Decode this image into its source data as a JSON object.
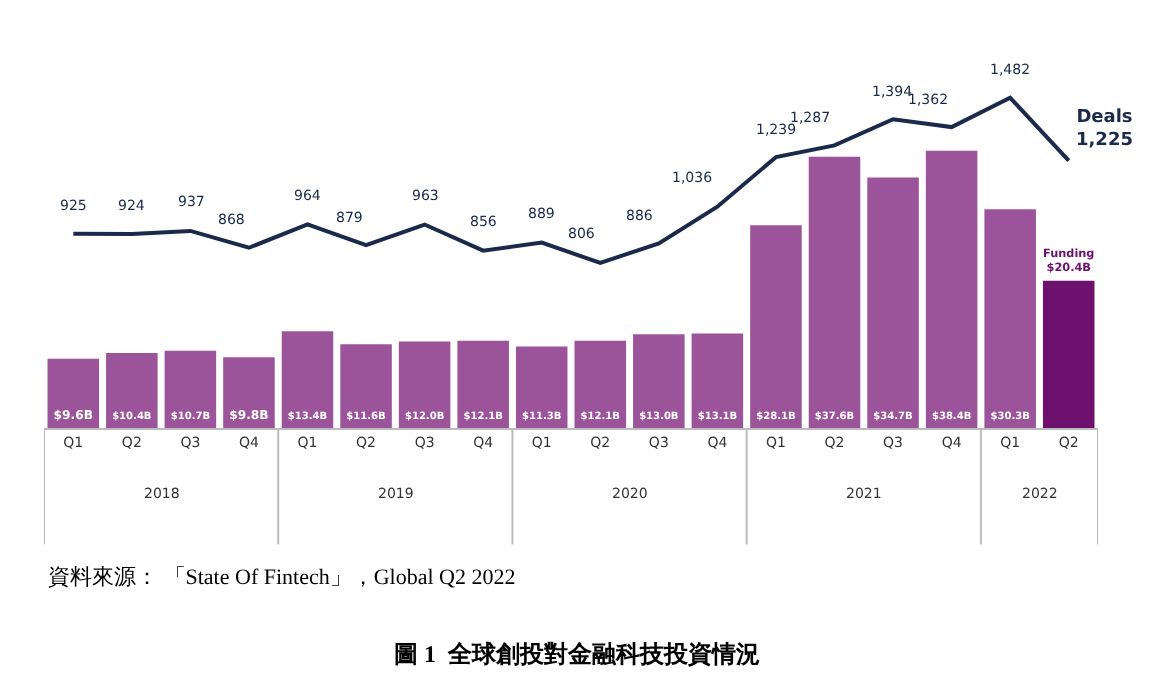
{
  "chart_data": {
    "type": "bar",
    "title": "圖 1  全球創投對金融科技投資情況",
    "categories": [
      "Q1",
      "Q2",
      "Q3",
      "Q4",
      "Q1",
      "Q2",
      "Q3",
      "Q4",
      "Q1",
      "Q2",
      "Q3",
      "Q4",
      "Q1",
      "Q2",
      "Q3",
      "Q4",
      "Q1",
      "Q2"
    ],
    "series": [
      {
        "name": "Funding",
        "colors": [
          "#9b5499",
          "#9b5499",
          "#9b5499",
          "#9b5499",
          "#9b5499",
          "#9b5499",
          "#9b5499",
          "#9b5499",
          "#9b5499",
          "#9b5499",
          "#9b5499",
          "#9b5499",
          "#9b5499",
          "#9b5499",
          "#9b5499",
          "#9b5499",
          "#9b5499",
          "#6e106e"
        ],
        "values": [
          9.6,
          10.4,
          10.7,
          9.8,
          13.4,
          11.6,
          12.0,
          12.1,
          11.3,
          12.1,
          13.0,
          13.1,
          28.1,
          37.6,
          34.7,
          38.4,
          30.3,
          20.4
        ],
        "value_labels": [
          "$9.6B",
          "$10.4B",
          "$10.7B",
          "$9.8B",
          "$13.4B",
          "$11.6B",
          "$12.0B",
          "$12.1B",
          "$11.3B",
          "$12.1B",
          "$13.0B",
          "$13.1B",
          "$28.1B",
          "$37.6B",
          "$34.7B",
          "$38.4B",
          "$30.3B",
          "$20.4B"
        ]
      },
      {
        "name": "Deals",
        "type": "line",
        "axis": "y2",
        "color": "#1b2a4a",
        "values": [
          925,
          924,
          937,
          868,
          964,
          879,
          963,
          856,
          889,
          806,
          886,
          1036,
          1239,
          1287,
          1394,
          1362,
          1482,
          1225
        ],
        "value_labels": [
          "925",
          "924",
          "937",
          "868",
          "964",
          "879",
          "963",
          "856",
          "889",
          "806",
          "886",
          "1,036",
          "1,239",
          "1,287",
          "1,394",
          "1,362",
          "1,482",
          "1,225"
        ]
      }
    ],
    "annotations": [
      "2018",
      "2019",
      "2020",
      "2021",
      "2022",
      "資料來源： 「State Of Fintech」，Global Q2 2022"
    ],
    "legend": false,
    "grid": false,
    "tick_labels": "x",
    "marker": "none",
    "line_style": "solid"
  }
}
